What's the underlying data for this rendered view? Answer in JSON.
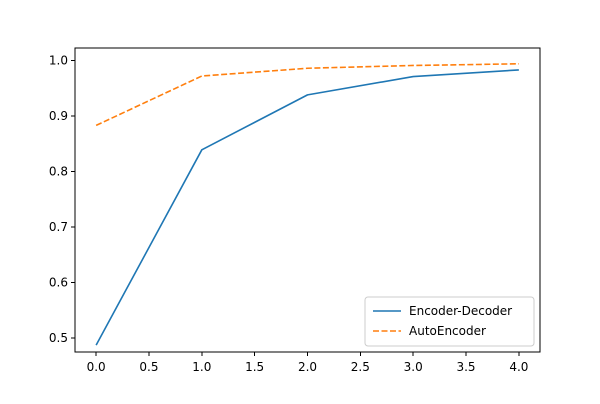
{
  "chart_data": {
    "type": "line",
    "title": "",
    "xlabel": "",
    "ylabel": "",
    "x": [
      0,
      1,
      2,
      3,
      4
    ],
    "xlim": [
      -0.2,
      4.2
    ],
    "ylim": [
      0.4746,
      1.0225
    ],
    "x_ticks": [
      0,
      0.5,
      1,
      1.5,
      2,
      2.5,
      3,
      3.5,
      4
    ],
    "x_tick_labels": [
      "0.0",
      "0.5",
      "1.0",
      "1.5",
      "2.0",
      "2.5",
      "3.0",
      "3.5",
      "4.0"
    ],
    "y_ticks": [
      0.5,
      0.6,
      0.7,
      0.8,
      0.9,
      1.0
    ],
    "y_tick_labels": [
      "0.5",
      "0.6",
      "0.7",
      "0.8",
      "0.9",
      "1.0"
    ],
    "grid": false,
    "legend_position": "lower-right",
    "series": [
      {
        "name": "Encoder-Decoder",
        "values": [
          0.487,
          0.839,
          0.938,
          0.971,
          0.983
        ],
        "color": "#1f77b4",
        "line_style": "solid"
      },
      {
        "name": "AutoEncoder",
        "values": [
          0.883,
          0.972,
          0.986,
          0.991,
          0.994
        ],
        "color": "#ff7f0e",
        "line_style": "dashed"
      }
    ]
  }
}
